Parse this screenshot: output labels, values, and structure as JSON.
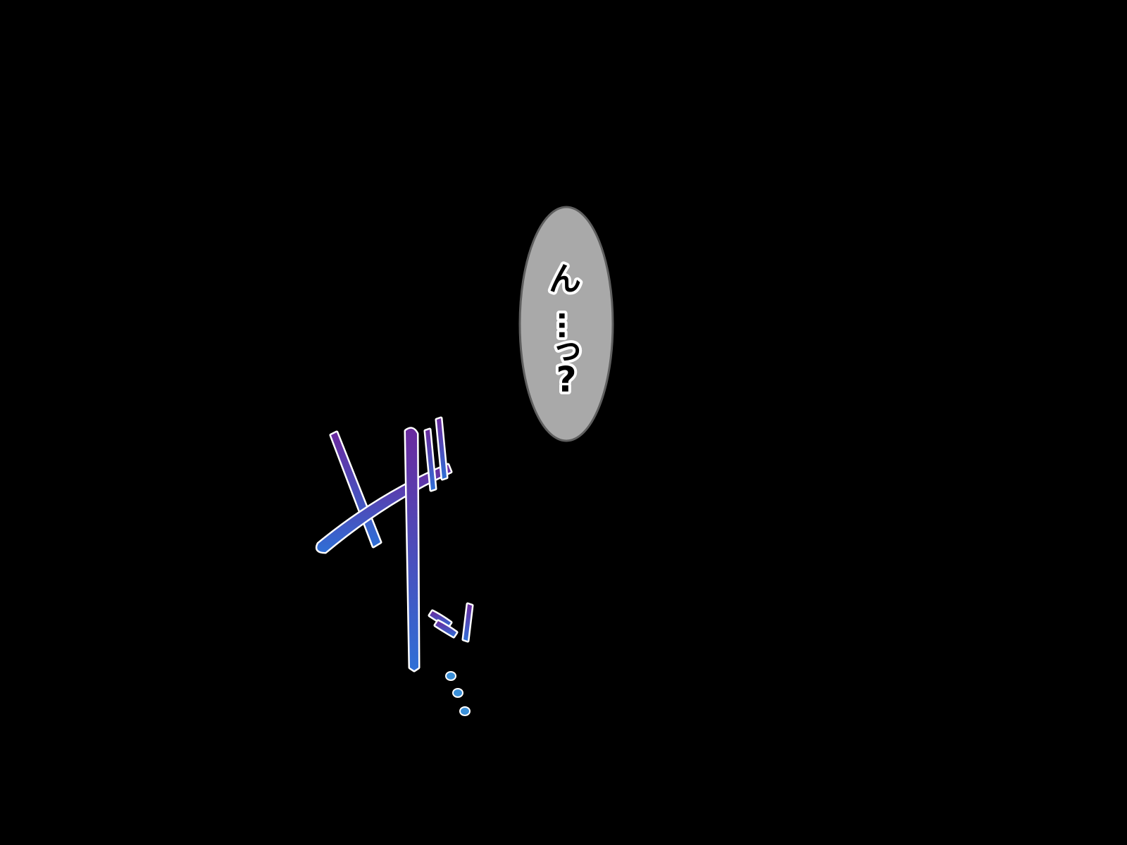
{
  "scene": {
    "background_color": "#000000"
  },
  "speech_bubble": {
    "text_chars": [
      "ん",
      "…",
      "っ",
      "?"
    ],
    "fill_color": "#a9a9a9",
    "outline_color": "#5f5f5f",
    "text_color": "#000000",
    "text_outline_color": "#ffffff"
  },
  "sound_effect": {
    "main_text": "ザ",
    "small_text": "ッ",
    "trail_text": "…",
    "gradient_top_color": "#6a2a9e",
    "gradient_bottom_color": "#2f6fd6",
    "outline_color": "#ffffff",
    "dots_color": "#3a8fd8"
  }
}
